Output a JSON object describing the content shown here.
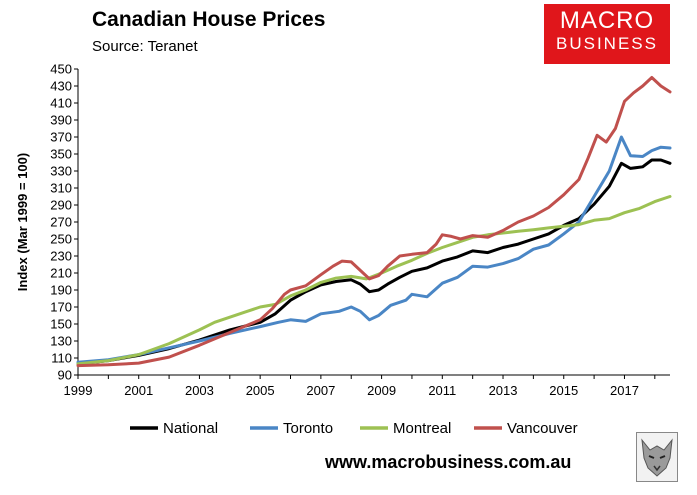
{
  "header": {
    "title": "Canadian House Prices",
    "subtitle": "Source: Teranet"
  },
  "logo": {
    "line1": "MACRO",
    "line2": "BUSINESS",
    "color": "#e0161b"
  },
  "footer": {
    "url": "www.macrobusiness.com.au"
  },
  "chart_data": {
    "type": "line",
    "title": "Canadian House Prices",
    "ylabel": "Index (Mar 1999 = 100)",
    "xlabel": "",
    "xlim": [
      1999,
      2018.5
    ],
    "ylim": [
      90,
      450
    ],
    "yticks": [
      90,
      110,
      130,
      150,
      170,
      190,
      210,
      230,
      250,
      270,
      290,
      310,
      330,
      350,
      370,
      390,
      410,
      430,
      450
    ],
    "xticks": [
      1999,
      2001,
      2003,
      2005,
      2007,
      2009,
      2011,
      2013,
      2015,
      2017
    ],
    "grid": false,
    "legend_position": "bottom",
    "series": [
      {
        "name": "National",
        "color": "#000000",
        "points": [
          [
            1999,
            103
          ],
          [
            2000,
            107
          ],
          [
            2001,
            113
          ],
          [
            2002,
            121
          ],
          [
            2003,
            131
          ],
          [
            2004,
            143
          ],
          [
            2005,
            152
          ],
          [
            2005.5,
            162
          ],
          [
            2006,
            178
          ],
          [
            2006.5,
            188
          ],
          [
            2007,
            196
          ],
          [
            2007.5,
            200
          ],
          [
            2008,
            202
          ],
          [
            2008.3,
            197
          ],
          [
            2008.6,
            188
          ],
          [
            2008.9,
            190
          ],
          [
            2009.2,
            197
          ],
          [
            2009.6,
            205
          ],
          [
            2010,
            212
          ],
          [
            2010.5,
            216
          ],
          [
            2011,
            224
          ],
          [
            2011.5,
            229
          ],
          [
            2012,
            236
          ],
          [
            2012.5,
            234
          ],
          [
            2013,
            240
          ],
          [
            2013.5,
            244
          ],
          [
            2014,
            250
          ],
          [
            2014.5,
            256
          ],
          [
            2015,
            266
          ],
          [
            2015.5,
            274
          ],
          [
            2016,
            291
          ],
          [
            2016.5,
            312
          ],
          [
            2016.9,
            339
          ],
          [
            2017.2,
            333
          ],
          [
            2017.6,
            335
          ],
          [
            2017.9,
            343
          ],
          [
            2018.2,
            343
          ],
          [
            2018.5,
            339
          ]
        ]
      },
      {
        "name": "Toronto",
        "color": "#4a86c5",
        "points": [
          [
            1999,
            105
          ],
          [
            2000,
            108
          ],
          [
            2001,
            114
          ],
          [
            2002,
            122
          ],
          [
            2003,
            130
          ],
          [
            2004,
            139
          ],
          [
            2005,
            147
          ],
          [
            2005.6,
            152
          ],
          [
            2006,
            155
          ],
          [
            2006.5,
            153
          ],
          [
            2007,
            162
          ],
          [
            2007.6,
            165
          ],
          [
            2008,
            170
          ],
          [
            2008.3,
            165
          ],
          [
            2008.6,
            155
          ],
          [
            2008.9,
            160
          ],
          [
            2009.3,
            172
          ],
          [
            2009.8,
            178
          ],
          [
            2010,
            185
          ],
          [
            2010.5,
            182
          ],
          [
            2011,
            198
          ],
          [
            2011.5,
            205
          ],
          [
            2012,
            218
          ],
          [
            2012.5,
            217
          ],
          [
            2013,
            221
          ],
          [
            2013.5,
            227
          ],
          [
            2014,
            238
          ],
          [
            2014.5,
            243
          ],
          [
            2015,
            256
          ],
          [
            2015.5,
            270
          ],
          [
            2016,
            300
          ],
          [
            2016.5,
            330
          ],
          [
            2016.9,
            370
          ],
          [
            2017.2,
            348
          ],
          [
            2017.6,
            347
          ],
          [
            2017.9,
            354
          ],
          [
            2018.2,
            358
          ],
          [
            2018.5,
            357
          ]
        ]
      },
      {
        "name": "Montreal",
        "color": "#9dc153",
        "points": [
          [
            1999,
            103
          ],
          [
            2000,
            107
          ],
          [
            2001,
            114
          ],
          [
            2002,
            127
          ],
          [
            2003,
            143
          ],
          [
            2003.5,
            152
          ],
          [
            2004,
            158
          ],
          [
            2004.5,
            164
          ],
          [
            2005,
            170
          ],
          [
            2005.5,
            173
          ],
          [
            2006,
            183
          ],
          [
            2006.5,
            190
          ],
          [
            2007,
            199
          ],
          [
            2007.5,
            204
          ],
          [
            2008,
            206
          ],
          [
            2008.5,
            203
          ],
          [
            2009,
            210
          ],
          [
            2009.5,
            218
          ],
          [
            2010,
            225
          ],
          [
            2010.5,
            233
          ],
          [
            2011,
            240
          ],
          [
            2011.5,
            246
          ],
          [
            2012,
            252
          ],
          [
            2012.5,
            255
          ],
          [
            2013,
            257
          ],
          [
            2013.5,
            259
          ],
          [
            2014,
            261
          ],
          [
            2014.5,
            263
          ],
          [
            2015,
            265
          ],
          [
            2015.5,
            267
          ],
          [
            2016,
            272
          ],
          [
            2016.5,
            274
          ],
          [
            2017,
            281
          ],
          [
            2017.5,
            286
          ],
          [
            2018,
            294
          ],
          [
            2018.5,
            300
          ]
        ]
      },
      {
        "name": "Vancouver",
        "color": "#c0504d",
        "points": [
          [
            1999,
            101
          ],
          [
            2000,
            102
          ],
          [
            2001,
            104
          ],
          [
            2002,
            111
          ],
          [
            2003,
            125
          ],
          [
            2004,
            140
          ],
          [
            2005,
            155
          ],
          [
            2005.4,
            168
          ],
          [
            2005.8,
            185
          ],
          [
            2006,
            190
          ],
          [
            2006.5,
            195
          ],
          [
            2007,
            208
          ],
          [
            2007.4,
            218
          ],
          [
            2007.7,
            224
          ],
          [
            2008,
            223
          ],
          [
            2008.3,
            213
          ],
          [
            2008.6,
            203
          ],
          [
            2008.9,
            207
          ],
          [
            2009.2,
            218
          ],
          [
            2009.6,
            230
          ],
          [
            2010,
            232
          ],
          [
            2010.5,
            234
          ],
          [
            2010.8,
            244
          ],
          [
            2011,
            255
          ],
          [
            2011.3,
            253
          ],
          [
            2011.6,
            250
          ],
          [
            2012,
            254
          ],
          [
            2012.5,
            252
          ],
          [
            2013,
            260
          ],
          [
            2013.5,
            270
          ],
          [
            2014,
            277
          ],
          [
            2014.5,
            287
          ],
          [
            2015,
            302
          ],
          [
            2015.5,
            320
          ],
          [
            2015.8,
            345
          ],
          [
            2016.1,
            372
          ],
          [
            2016.4,
            364
          ],
          [
            2016.7,
            380
          ],
          [
            2017,
            412
          ],
          [
            2017.3,
            422
          ],
          [
            2017.6,
            430
          ],
          [
            2017.9,
            440
          ],
          [
            2018.2,
            430
          ],
          [
            2018.5,
            423
          ]
        ]
      }
    ]
  }
}
